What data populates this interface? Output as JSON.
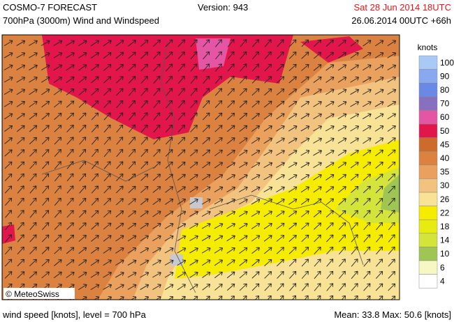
{
  "header": {
    "title": "COSMO-7 FORECAST",
    "subtitle": "700hPa (3000m) Wind and Windspeed",
    "version": "Version: 943",
    "valid_time": "Sat 28 Jun 2014 18UTC",
    "run_time": "26.06.2014 00UTC +66h"
  },
  "legend": {
    "title": "knots",
    "entries": [
      {
        "value": 100,
        "color": "#a9c9f7"
      },
      {
        "value": 90,
        "color": "#88a9ef"
      },
      {
        "value": 80,
        "color": "#6a89e6"
      },
      {
        "value": 70,
        "color": "#8a6fbf"
      },
      {
        "value": 60,
        "color": "#e455a3"
      },
      {
        "value": 50,
        "color": "#e2164b"
      },
      {
        "value": 45,
        "color": "#cf6a2d"
      },
      {
        "value": 40,
        "color": "#dc8240"
      },
      {
        "value": 35,
        "color": "#e9a15d"
      },
      {
        "value": 30,
        "color": "#f2c27f"
      },
      {
        "value": 26,
        "color": "#f8e295"
      },
      {
        "value": 22,
        "color": "#f6ec00"
      },
      {
        "value": 18,
        "color": "#e6ec12"
      },
      {
        "value": 14,
        "color": "#d4e43a"
      },
      {
        "value": 10,
        "color": "#9fc654"
      },
      {
        "value": 6,
        "color": "#f7f7c3"
      },
      {
        "value": 4,
        "color": "#ffffff"
      }
    ]
  },
  "map": {
    "credit": "© MeteoSwiss"
  },
  "footer": {
    "level": "wind speed [knots], level = 700 hPa",
    "stats": "Mean:  33.8 Max:  50.6 [knots]"
  }
}
